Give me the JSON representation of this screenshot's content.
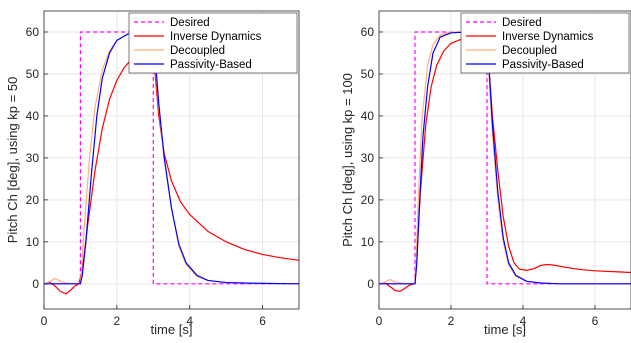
{
  "chart_data": [
    {
      "type": "line",
      "xlabel": "time [s]",
      "ylabel": "Pitch Ch [deg], using kp = 50",
      "xlim": [
        0,
        7
      ],
      "ylim": [
        -6,
        65
      ],
      "xticks": [
        "0",
        "2",
        "4",
        "6"
      ],
      "yticks": [
        "0",
        "10",
        "20",
        "30",
        "40",
        "50",
        "60"
      ],
      "grid": true,
      "legend_position": "top-right",
      "series": [
        {
          "name": "Desired",
          "color": "#ff00ff",
          "dash": true,
          "points": [
            [
              0,
              0
            ],
            [
              1,
              0
            ],
            [
              1,
              60
            ],
            [
              3,
              60
            ],
            [
              3,
              0
            ],
            [
              7,
              0
            ]
          ]
        },
        {
          "name": "Inverse Dynamics",
          "color": "#ff0000",
          "points": [
            [
              0,
              0
            ],
            [
              0.15,
              0.4
            ],
            [
              0.3,
              -0.5
            ],
            [
              0.45,
              -1.8
            ],
            [
              0.6,
              -2.4
            ],
            [
              0.72,
              -1.6
            ],
            [
              0.85,
              -0.5
            ],
            [
              0.95,
              -0.1
            ],
            [
              1.05,
              3
            ],
            [
              1.2,
              14
            ],
            [
              1.4,
              27
            ],
            [
              1.6,
              37
            ],
            [
              1.8,
              44
            ],
            [
              2.0,
              48.5
            ],
            [
              2.2,
              51.5
            ],
            [
              2.4,
              53.5
            ],
            [
              2.6,
              55
            ],
            [
              2.8,
              56
            ],
            [
              3.0,
              56.5
            ],
            [
              3.05,
              50
            ],
            [
              3.15,
              40
            ],
            [
              3.3,
              31
            ],
            [
              3.5,
              24.5
            ],
            [
              3.75,
              19.5
            ],
            [
              4.0,
              16.5
            ],
            [
              4.5,
              12.5
            ],
            [
              5.0,
              10
            ],
            [
              5.5,
              8.2
            ],
            [
              6.0,
              7
            ],
            [
              6.5,
              6.2
            ],
            [
              7.0,
              5.6
            ]
          ]
        },
        {
          "name": "Decoupled",
          "color": "#ffb07a",
          "points": [
            [
              0,
              0
            ],
            [
              0.15,
              0.5
            ],
            [
              0.3,
              1.3
            ],
            [
              0.45,
              0.6
            ],
            [
              0.6,
              0.2
            ],
            [
              0.8,
              0
            ],
            [
              1.0,
              0
            ],
            [
              1.03,
              3
            ],
            [
              1.1,
              13
            ],
            [
              1.25,
              30
            ],
            [
              1.4,
              42
            ],
            [
              1.6,
              51
            ],
            [
              1.8,
              55.5
            ],
            [
              2.0,
              58
            ],
            [
              2.3,
              59.5
            ],
            [
              2.6,
              60
            ],
            [
              3.0,
              60
            ],
            [
              3.05,
              53
            ],
            [
              3.15,
              42
            ],
            [
              3.3,
              30
            ],
            [
              3.5,
              18
            ],
            [
              3.7,
              9
            ],
            [
              3.9,
              4.5
            ],
            [
              4.2,
              1.8
            ],
            [
              4.5,
              0.8
            ],
            [
              5.0,
              0.3
            ],
            [
              6.0,
              0.1
            ],
            [
              7.0,
              0
            ]
          ]
        },
        {
          "name": "Passivity-Based",
          "color": "#0000ff",
          "points": [
            [
              0,
              0
            ],
            [
              0.5,
              0
            ],
            [
              1.0,
              0
            ],
            [
              1.05,
              2
            ],
            [
              1.15,
              10
            ],
            [
              1.3,
              26
            ],
            [
              1.45,
              40
            ],
            [
              1.6,
              49
            ],
            [
              1.8,
              55
            ],
            [
              2.0,
              58
            ],
            [
              2.3,
              59.5
            ],
            [
              2.6,
              59.9
            ],
            [
              3.0,
              60
            ],
            [
              3.05,
              54
            ],
            [
              3.15,
              43
            ],
            [
              3.3,
              30
            ],
            [
              3.5,
              18
            ],
            [
              3.7,
              9.5
            ],
            [
              3.9,
              5
            ],
            [
              4.2,
              2
            ],
            [
              4.5,
              0.8
            ],
            [
              5.0,
              0.3
            ],
            [
              6.0,
              0.1
            ],
            [
              7.0,
              0
            ]
          ]
        }
      ]
    },
    {
      "type": "line",
      "xlabel": "time [s]",
      "ylabel": "Pitch Ch [deg], using kp = 100",
      "xlim": [
        0,
        7
      ],
      "ylim": [
        -6,
        65
      ],
      "xticks": [
        "0",
        "2",
        "4",
        "6"
      ],
      "yticks": [
        "0",
        "10",
        "20",
        "30",
        "40",
        "50",
        "60"
      ],
      "grid": true,
      "legend_position": "top-right",
      "series": [
        {
          "name": "Desired",
          "color": "#ff00ff",
          "dash": true,
          "points": [
            [
              0,
              0
            ],
            [
              1,
              0
            ],
            [
              1,
              60
            ],
            [
              3,
              60
            ],
            [
              3,
              0
            ],
            [
              7,
              0
            ]
          ]
        },
        {
          "name": "Inverse Dynamics",
          "color": "#ff0000",
          "points": [
            [
              0,
              0
            ],
            [
              0.15,
              0.3
            ],
            [
              0.3,
              -0.6
            ],
            [
              0.45,
              -1.6
            ],
            [
              0.58,
              -1.8
            ],
            [
              0.7,
              -1.2
            ],
            [
              0.85,
              -0.3
            ],
            [
              1.0,
              0
            ],
            [
              1.05,
              6
            ],
            [
              1.15,
              22
            ],
            [
              1.3,
              38
            ],
            [
              1.45,
              47
            ],
            [
              1.6,
              52
            ],
            [
              1.8,
              55.5
            ],
            [
              2.0,
              57.3
            ],
            [
              2.3,
              58.3
            ],
            [
              2.6,
              58.8
            ],
            [
              3.0,
              59.2
            ],
            [
              3.05,
              52
            ],
            [
              3.15,
              40
            ],
            [
              3.3,
              27
            ],
            [
              3.45,
              16
            ],
            [
              3.6,
              9
            ],
            [
              3.75,
              5
            ],
            [
              3.9,
              3.5
            ],
            [
              4.1,
              3.2
            ],
            [
              4.3,
              3.6
            ],
            [
              4.5,
              4.4
            ],
            [
              4.7,
              4.6
            ],
            [
              4.9,
              4.4
            ],
            [
              5.2,
              3.9
            ],
            [
              5.6,
              3.4
            ],
            [
              6.0,
              3.1
            ],
            [
              6.5,
              2.9
            ],
            [
              7.0,
              2.7
            ]
          ]
        },
        {
          "name": "Decoupled",
          "color": "#ffb07a",
          "points": [
            [
              0,
              0
            ],
            [
              0.15,
              0.4
            ],
            [
              0.3,
              1.0
            ],
            [
              0.45,
              0.5
            ],
            [
              0.6,
              0.2
            ],
            [
              0.8,
              0
            ],
            [
              1.0,
              0
            ],
            [
              1.03,
              6
            ],
            [
              1.1,
              22
            ],
            [
              1.2,
              40
            ],
            [
              1.35,
              52
            ],
            [
              1.5,
              57
            ],
            [
              1.7,
              59.3
            ],
            [
              2.0,
              60
            ],
            [
              3.0,
              60
            ],
            [
              3.05,
              51
            ],
            [
              3.15,
              36
            ],
            [
              3.3,
              20
            ],
            [
              3.45,
              10
            ],
            [
              3.6,
              4.5
            ],
            [
              3.8,
              1.8
            ],
            [
              4.1,
              0.6
            ],
            [
              4.5,
              0.2
            ],
            [
              5.0,
              0
            ],
            [
              7.0,
              0
            ]
          ]
        },
        {
          "name": "Passivity-Based",
          "color": "#0000ff",
          "points": [
            [
              0,
              0
            ],
            [
              0.5,
              0
            ],
            [
              1.0,
              0
            ],
            [
              1.05,
              5
            ],
            [
              1.12,
              18
            ],
            [
              1.22,
              35
            ],
            [
              1.35,
              47
            ],
            [
              1.5,
              55
            ],
            [
              1.7,
              58.8
            ],
            [
              2.0,
              59.8
            ],
            [
              2.5,
              60
            ],
            [
              3.0,
              60
            ],
            [
              3.05,
              52
            ],
            [
              3.15,
              38
            ],
            [
              3.3,
              22
            ],
            [
              3.45,
              11
            ],
            [
              3.6,
              5
            ],
            [
              3.8,
              2
            ],
            [
              4.1,
              0.6
            ],
            [
              4.5,
              0.2
            ],
            [
              5.0,
              0
            ],
            [
              7.0,
              0
            ]
          ]
        }
      ]
    }
  ]
}
